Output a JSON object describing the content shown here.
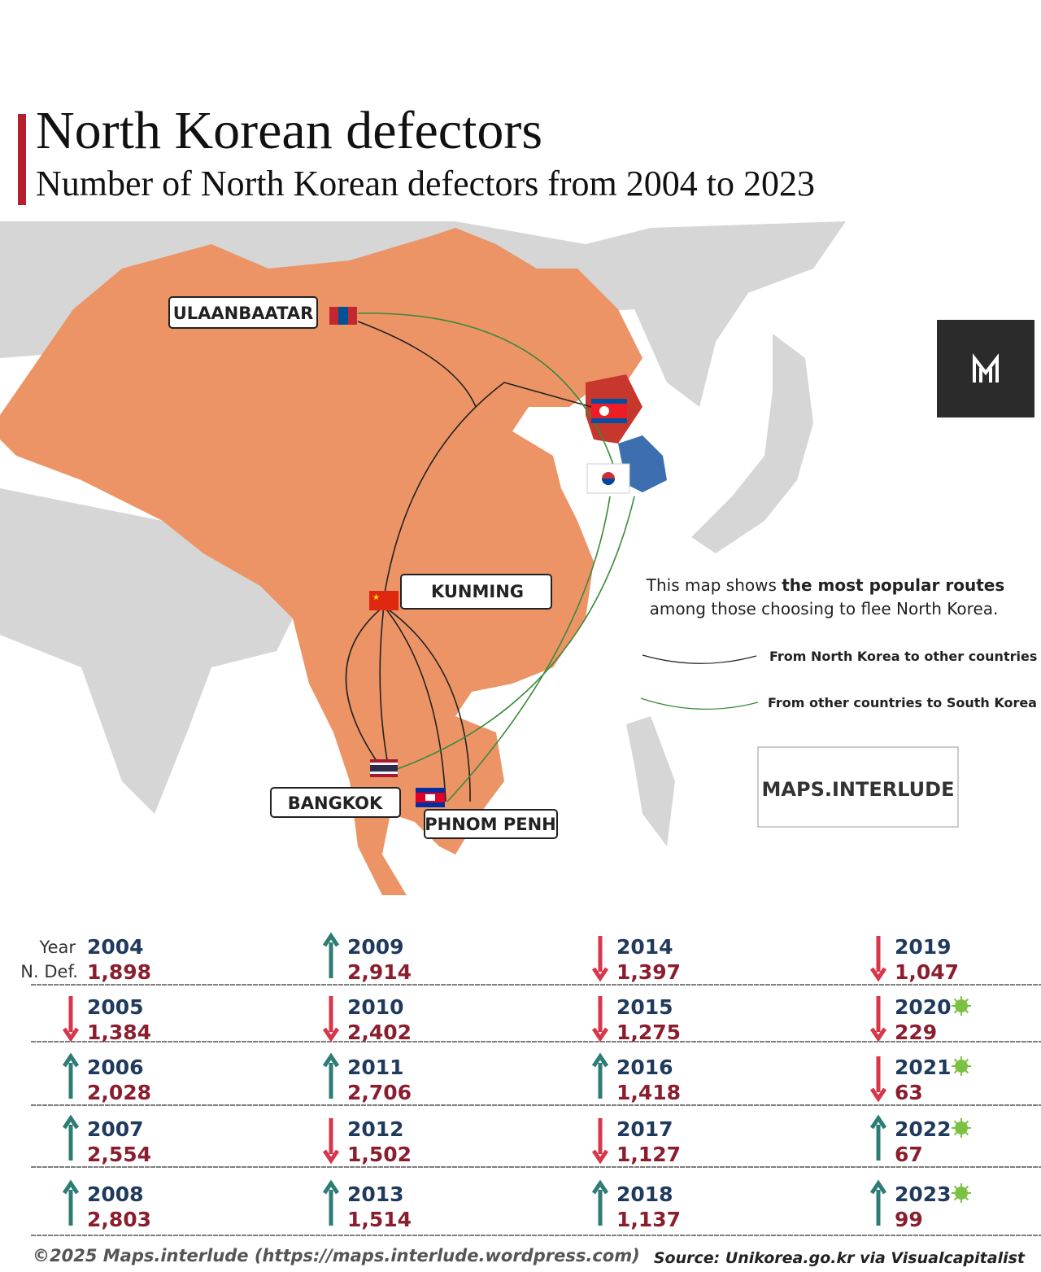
{
  "header": {
    "title": "North Korean defectors",
    "subtitle": "Number of  North Korean defectors from 2004 to 2023"
  },
  "map": {
    "cities": [
      "ULAANBAATAR",
      "KUNMING",
      "BANGKOK",
      "PHNOM PENH"
    ],
    "note": {
      "before": "This map shows ",
      "bold": "the most popular routes",
      "after": "among those choosing to flee North Korea."
    },
    "legend": [
      "From North Korea to other countries",
      "From other countries to South Korea"
    ],
    "brand": "MAPS.INTERLUDE"
  },
  "table": {
    "year_label": "Year",
    "value_label": "N. Def.",
    "rows": [
      {
        "year": "2004",
        "defectors": "1,898"
      },
      {
        "year": "2005",
        "defectors": "1,384"
      },
      {
        "year": "2006",
        "defectors": "2,028"
      },
      {
        "year": "2007",
        "defectors": "2,554"
      },
      {
        "year": "2008",
        "defectors": "2,803"
      },
      {
        "year": "2009",
        "defectors": "2,914"
      },
      {
        "year": "2010",
        "defectors": "2,402"
      },
      {
        "year": "2011",
        "defectors": "2,706"
      },
      {
        "year": "2012",
        "defectors": "1,502"
      },
      {
        "year": "2013",
        "defectors": "1,514"
      },
      {
        "year": "2014",
        "defectors": "1,397"
      },
      {
        "year": "2015",
        "defectors": "1,275"
      },
      {
        "year": "2016",
        "defectors": "1,418"
      },
      {
        "year": "2017",
        "defectors": "1,127"
      },
      {
        "year": "2018",
        "defectors": "1,137"
      },
      {
        "year": "2019",
        "defectors": "1,047"
      },
      {
        "year": "2020",
        "defectors": "229",
        "covid": true
      },
      {
        "year": "2021",
        "defectors": "63",
        "covid": true
      },
      {
        "year": "2022",
        "defectors": "67",
        "covid": true
      },
      {
        "year": "2023",
        "defectors": "99",
        "covid": true
      }
    ]
  },
  "footer": {
    "copyright": "©2025 Maps.interlude (https://maps.interlude.wordpress.com)",
    "source": "Source: Unikorea.go.kr via Visualcapitalist"
  }
}
